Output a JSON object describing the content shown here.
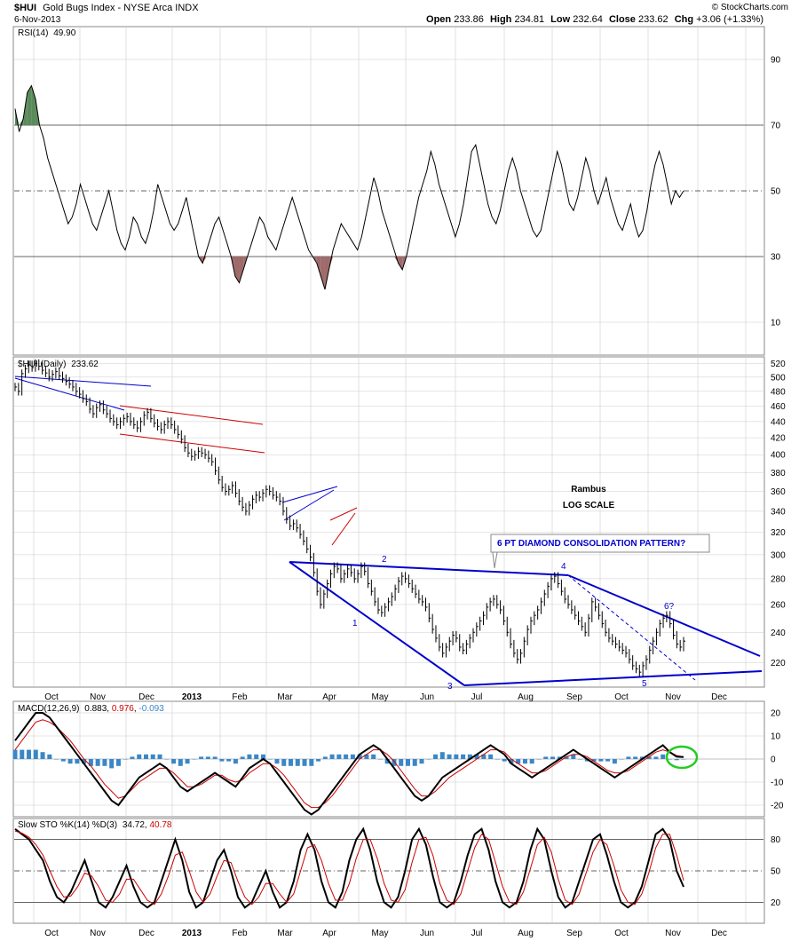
{
  "header": {
    "symbol": "$HUI",
    "name": "Gold Bugs Index - NYSE Arca INDX",
    "date": "6-Nov-2013",
    "source": "© StockCharts.com",
    "quote": {
      "open_label": "Open",
      "open": "233.86",
      "high_label": "High",
      "high": "234.81",
      "low_label": "Low",
      "low": "232.64",
      "close_label": "Close",
      "close": "233.62",
      "chg_label": "Chg",
      "chg": "+3.06 (+1.33%)"
    }
  },
  "months": [
    "Oct",
    "Nov",
    "Dec",
    "2013",
    "Feb",
    "Mar",
    "Apr",
    "May",
    "Jun",
    "Jul",
    "Aug",
    "Sep",
    "Oct",
    "Nov",
    "Dec"
  ],
  "colors": {
    "series": "#000000",
    "signal": "#cc0000",
    "pattern": "#0000cc",
    "channel": "#cc0000",
    "histogram": "#3a87c8",
    "overbought_fill": "#5a8a5a",
    "oversold_fill": "#9e6a6a",
    "highlight": "#22cc22",
    "grid": "#cccccc"
  },
  "chart_data": [
    {
      "type": "line",
      "title": "RSI(14) 49.90",
      "title_label": "RSI(14)",
      "title_value": "49.90",
      "ylim": [
        0,
        100
      ],
      "yticks": [
        10,
        30,
        50,
        70,
        90
      ],
      "reference_lines": [
        30,
        50,
        70
      ],
      "series": [
        {
          "values": [
            75,
            68,
            72,
            80,
            82,
            78,
            70,
            66,
            60,
            56,
            52,
            48,
            44,
            40,
            42,
            46,
            52,
            48,
            44,
            40,
            38,
            42,
            46,
            50,
            44,
            38,
            34,
            32,
            36,
            42,
            40,
            36,
            34,
            38,
            44,
            52,
            48,
            44,
            40,
            38,
            40,
            44,
            48,
            42,
            36,
            30,
            28,
            32,
            36,
            40,
            42,
            38,
            34,
            30,
            24,
            22,
            26,
            30,
            34,
            38,
            42,
            40,
            36,
            34,
            32,
            36,
            40,
            44,
            48,
            44,
            40,
            36,
            32,
            30,
            28,
            24,
            20,
            26,
            32,
            36,
            40,
            38,
            36,
            34,
            32,
            36,
            42,
            48,
            54,
            50,
            44,
            40,
            36,
            32,
            28,
            26,
            30,
            36,
            42,
            48,
            52,
            56,
            62,
            58,
            52,
            48,
            44,
            40,
            36,
            40,
            46,
            54,
            62,
            64,
            58,
            52,
            46,
            42,
            40,
            44,
            50,
            56,
            60,
            56,
            50,
            46,
            42,
            38,
            36,
            38,
            44,
            50,
            56,
            62,
            58,
            52,
            46,
            44,
            48,
            54,
            60,
            56,
            50,
            46,
            50,
            54,
            48,
            44,
            40,
            38,
            42,
            46,
            40,
            36,
            38,
            44,
            52,
            58,
            62,
            58,
            52,
            46,
            50,
            48,
            50
          ]
        }
      ]
    },
    {
      "type": "line",
      "title": "$HUI (Daily) 233.62",
      "title_label": "$HUI (Daily)",
      "title_value": "233.62",
      "scale": "log",
      "ylim": [
        205,
        530
      ],
      "yticks": [
        220,
        240,
        260,
        280,
        300,
        320,
        340,
        360,
        380,
        400,
        420,
        440,
        460,
        480,
        500,
        520
      ],
      "annotations": {
        "pattern_title": "6 PT DIAMOND CONSOLIDATION PATTERN?",
        "author": "Rambus",
        "scale_note": "LOG SCALE",
        "points": [
          "1",
          "2",
          "3",
          "4",
          "5",
          "6?"
        ]
      },
      "series": [
        {
          "values": [
            486,
            480,
            505,
            512,
            518,
            514,
            520,
            516,
            510,
            506,
            500,
            504,
            508,
            502,
            498,
            494,
            490,
            486,
            480,
            476,
            470,
            466,
            456,
            450,
            458,
            462,
            455,
            450,
            444,
            440,
            436,
            440,
            444,
            446,
            440,
            436,
            432,
            440,
            448,
            452,
            444,
            438,
            434,
            430,
            436,
            440,
            436,
            430,
            424,
            418,
            408,
            402,
            398,
            400,
            404,
            402,
            400,
            396,
            392,
            382,
            372,
            364,
            360,
            362,
            366,
            358,
            350,
            344,
            340,
            346,
            352,
            356,
            354,
            358,
            362,
            360,
            356,
            354,
            350,
            340,
            332,
            326,
            328,
            324,
            318,
            312,
            305,
            298,
            285,
            270,
            260,
            268,
            276,
            284,
            290,
            288,
            280,
            284,
            288,
            285,
            280,
            284,
            290,
            286,
            276,
            270,
            262,
            256,
            254,
            258,
            262,
            266,
            272,
            278,
            282,
            280,
            276,
            272,
            268,
            264,
            262,
            258,
            250,
            242,
            236,
            230,
            226,
            230,
            234,
            238,
            236,
            230,
            228,
            232,
            236,
            240,
            244,
            248,
            252,
            258,
            262,
            264,
            260,
            256,
            248,
            240,
            232,
            226,
            222,
            226,
            234,
            242,
            248,
            252,
            256,
            262,
            268,
            274,
            280,
            282,
            276,
            270,
            264,
            260,
            256,
            252,
            248,
            244,
            240,
            250,
            262,
            258,
            252,
            246,
            240,
            236,
            234,
            232,
            230,
            228,
            226,
            222,
            218,
            216,
            214,
            218,
            222,
            228,
            234,
            240,
            246,
            250,
            252,
            246,
            238,
            232,
            230,
            234
          ]
        }
      ]
    },
    {
      "type": "line",
      "title": "MACD(12,26,9) 0.883, 0.976, -0.093",
      "title_label": "MACD(12,26,9)",
      "values_text": [
        "0.883",
        "0.976",
        "-0.093"
      ],
      "ylim": [
        -25,
        25
      ],
      "yticks": [
        -20,
        -10,
        0,
        10,
        20
      ],
      "series": [
        {
          "values": [
            8,
            12,
            16,
            20,
            20,
            18,
            14,
            10,
            6,
            2,
            -2,
            -6,
            -10,
            -14,
            -18,
            -20,
            -16,
            -12,
            -8,
            -6,
            -4,
            -2,
            -4,
            -8,
            -12,
            -14,
            -12,
            -10,
            -8,
            -6,
            -8,
            -10,
            -12,
            -8,
            -4,
            -2,
            0,
            -2,
            -6,
            -10,
            -14,
            -18,
            -22,
            -24,
            -22,
            -18,
            -14,
            -10,
            -6,
            -2,
            2,
            4,
            6,
            4,
            0,
            -4,
            -8,
            -12,
            -16,
            -18,
            -16,
            -12,
            -8,
            -6,
            -4,
            -2,
            0,
            2,
            4,
            6,
            4,
            2,
            -2,
            -4,
            -6,
            -8,
            -6,
            -4,
            -2,
            0,
            2,
            4,
            2,
            0,
            -2,
            -4,
            -6,
            -8,
            -6,
            -4,
            -2,
            0,
            2,
            4,
            6,
            3,
            1,
            0.883
          ]
        },
        {
          "values": [
            4,
            8,
            12,
            16,
            17,
            16,
            14,
            11,
            8,
            4,
            0,
            -3,
            -7,
            -11,
            -14,
            -17,
            -16,
            -13,
            -10,
            -8,
            -6,
            -4,
            -4,
            -6,
            -9,
            -12,
            -12,
            -11,
            -9,
            -7,
            -7,
            -9,
            -10,
            -9,
            -6,
            -4,
            -2,
            -2,
            -4,
            -7,
            -11,
            -15,
            -19,
            -21,
            -21,
            -19,
            -16,
            -12,
            -8,
            -4,
            0,
            2,
            4,
            4,
            2,
            -1,
            -5,
            -9,
            -13,
            -16,
            -16,
            -14,
            -11,
            -8,
            -6,
            -4,
            -2,
            0,
            2,
            4,
            4,
            3,
            0,
            -2,
            -4,
            -6,
            -6,
            -5,
            -3,
            -1,
            1,
            2,
            2,
            1,
            -1,
            -3,
            -5,
            -6,
            -6,
            -5,
            -3,
            -1,
            1,
            3,
            4,
            3,
            1.5,
            0.976
          ]
        },
        {
          "values": [
            4,
            4,
            4,
            4,
            3,
            2,
            0,
            -1,
            -2,
            -2,
            -2,
            -3,
            -3,
            -3,
            -4,
            -3,
            0,
            1,
            2,
            2,
            2,
            2,
            0,
            -2,
            -3,
            -2,
            0,
            1,
            1,
            1,
            -1,
            -1,
            -2,
            1,
            2,
            2,
            2,
            0,
            -2,
            -3,
            -3,
            -3,
            -3,
            -3,
            -1,
            1,
            2,
            2,
            2,
            2,
            2,
            2,
            2,
            0,
            -2,
            -3,
            -3,
            -3,
            -3,
            -2,
            0,
            2,
            3,
            2,
            2,
            2,
            2,
            2,
            2,
            2,
            0,
            -1,
            -2,
            -2,
            -2,
            -2,
            0,
            1,
            1,
            1,
            1,
            2,
            0,
            -1,
            -1,
            -1,
            -1,
            -2,
            0,
            1,
            1,
            1,
            1,
            1,
            2,
            0,
            -0.5,
            -0.093
          ]
        }
      ]
    },
    {
      "type": "line",
      "title": "Slow STO %K(14) %D(3) 34.72, 40.78",
      "title_label": "Slow STO %K(14) %D(3)",
      "values_text": [
        "34.72",
        "40.78"
      ],
      "ylim": [
        0,
        100
      ],
      "yticks": [
        20,
        50,
        80
      ],
      "reference_lines": [
        20,
        50,
        80
      ],
      "series": [
        {
          "values": [
            90,
            85,
            80,
            70,
            60,
            40,
            25,
            20,
            30,
            45,
            60,
            40,
            20,
            15,
            25,
            40,
            55,
            35,
            20,
            15,
            20,
            40,
            60,
            80,
            60,
            30,
            15,
            20,
            40,
            60,
            70,
            50,
            25,
            15,
            20,
            35,
            50,
            30,
            15,
            20,
            40,
            70,
            85,
            70,
            40,
            20,
            15,
            30,
            60,
            80,
            90,
            70,
            40,
            20,
            15,
            25,
            50,
            80,
            90,
            75,
            45,
            20,
            15,
            20,
            40,
            65,
            85,
            90,
            70,
            40,
            20,
            15,
            20,
            40,
            70,
            90,
            80,
            50,
            25,
            15,
            20,
            40,
            60,
            80,
            85,
            65,
            40,
            20,
            15,
            20,
            35,
            60,
            85,
            90,
            80,
            50,
            34.72
          ]
        },
        {
          "values": [
            88,
            86,
            82,
            75,
            65,
            50,
            35,
            25,
            26,
            35,
            48,
            45,
            35,
            22,
            20,
            28,
            42,
            42,
            32,
            22,
            18,
            28,
            45,
            65,
            68,
            50,
            30,
            20,
            28,
            45,
            60,
            58,
            40,
            25,
            18,
            25,
            38,
            38,
            28,
            20,
            28,
            50,
            72,
            75,
            60,
            38,
            22,
            22,
            38,
            62,
            80,
            80,
            62,
            38,
            22,
            20,
            32,
            58,
            80,
            82,
            65,
            38,
            22,
            18,
            28,
            50,
            72,
            85,
            80,
            58,
            35,
            20,
            18,
            30,
            52,
            75,
            82,
            68,
            42,
            22,
            18,
            28,
            48,
            68,
            80,
            75,
            55,
            32,
            20,
            18,
            28,
            48,
            72,
            85,
            85,
            65,
            40.78
          ]
        }
      ]
    }
  ]
}
